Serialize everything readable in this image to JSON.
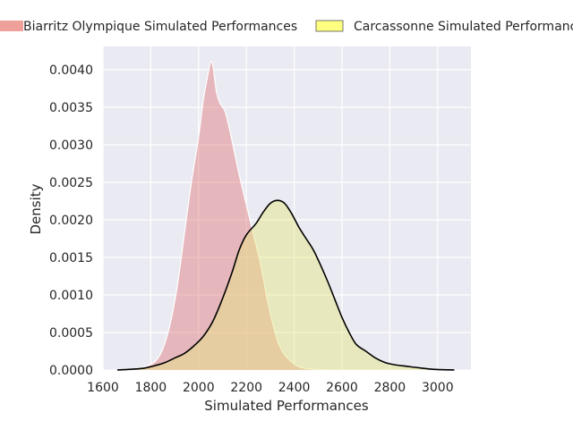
{
  "chart_data": {
    "type": "area",
    "title": "",
    "xlabel": "Simulated Performances",
    "ylabel": "Density",
    "xlim": [
      1600,
      3100
    ],
    "ylim": [
      0,
      0.0042
    ],
    "grid": true,
    "legend_position": "top",
    "x_ticks": [
      1600,
      1800,
      2000,
      2200,
      2400,
      2600,
      2800,
      3000
    ],
    "x_tick_labels": [
      "1600",
      "1800",
      "2000",
      "2200",
      "2400",
      "2600",
      "2800",
      "3000"
    ],
    "y_ticks": [
      0,
      0.0005,
      0.001,
      0.0015,
      0.002,
      0.0025,
      0.003,
      0.0035,
      0.004
    ],
    "y_tick_labels": [
      "0.0000",
      "0.0005",
      "0.0010",
      "0.0015",
      "0.0020",
      "0.0025",
      "0.0030",
      "0.0035",
      "0.0040"
    ],
    "series": [
      {
        "name": "Biarritz Olympique Simulated Performances",
        "fill": "#e07b7b",
        "legend_fill": "#f0a09a",
        "stroke": "#ffffff",
        "points": [
          [
            1660,
            0.0
          ],
          [
            1720,
            1e-05
          ],
          [
            1780,
            5e-05
          ],
          [
            1820,
            0.00012
          ],
          [
            1850,
            0.00028
          ],
          [
            1880,
            0.0006
          ],
          [
            1910,
            0.0011
          ],
          [
            1940,
            0.0018
          ],
          [
            1970,
            0.0025
          ],
          [
            2000,
            0.0031
          ],
          [
            2020,
            0.0036
          ],
          [
            2040,
            0.00395
          ],
          [
            2050,
            0.0041
          ],
          [
            2060,
            0.00405
          ],
          [
            2075,
            0.0037
          ],
          [
            2090,
            0.00355
          ],
          [
            2110,
            0.00345
          ],
          [
            2130,
            0.0032
          ],
          [
            2150,
            0.0029
          ],
          [
            2170,
            0.0026
          ],
          [
            2200,
            0.0022
          ],
          [
            2230,
            0.0018
          ],
          [
            2260,
            0.0014
          ],
          [
            2290,
            0.0009
          ],
          [
            2320,
            0.0005
          ],
          [
            2350,
            0.00025
          ],
          [
            2400,
            8e-05
          ],
          [
            2450,
            2e-05
          ],
          [
            2550,
            0.0
          ]
        ]
      },
      {
        "name": "Carcassonne Simulated Performances",
        "fill": "#e6e680",
        "legend_fill": "#ffff80",
        "stroke": "#000000",
        "points": [
          [
            1660,
            0.0
          ],
          [
            1760,
            2e-05
          ],
          [
            1820,
            6e-05
          ],
          [
            1860,
            0.0001
          ],
          [
            1900,
            0.00016
          ],
          [
            1940,
            0.00022
          ],
          [
            1980,
            0.00032
          ],
          [
            2020,
            0.00045
          ],
          [
            2060,
            0.00065
          ],
          [
            2100,
            0.00095
          ],
          [
            2140,
            0.0013
          ],
          [
            2170,
            0.0016
          ],
          [
            2200,
            0.0018
          ],
          [
            2240,
            0.00195
          ],
          [
            2270,
            0.0021
          ],
          [
            2300,
            0.00222
          ],
          [
            2330,
            0.00226
          ],
          [
            2360,
            0.00222
          ],
          [
            2390,
            0.00208
          ],
          [
            2420,
            0.0019
          ],
          [
            2450,
            0.00175
          ],
          [
            2480,
            0.0016
          ],
          [
            2510,
            0.0014
          ],
          [
            2540,
            0.00118
          ],
          [
            2570,
            0.00094
          ],
          [
            2600,
            0.0007
          ],
          [
            2630,
            0.0005
          ],
          [
            2660,
            0.00034
          ],
          [
            2700,
            0.00025
          ],
          [
            2740,
            0.00016
          ],
          [
            2780,
            0.0001
          ],
          [
            2820,
            7e-05
          ],
          [
            2870,
            5e-05
          ],
          [
            2920,
            3e-05
          ],
          [
            2980,
            1e-05
          ],
          [
            3070,
            0.0
          ]
        ]
      }
    ]
  }
}
